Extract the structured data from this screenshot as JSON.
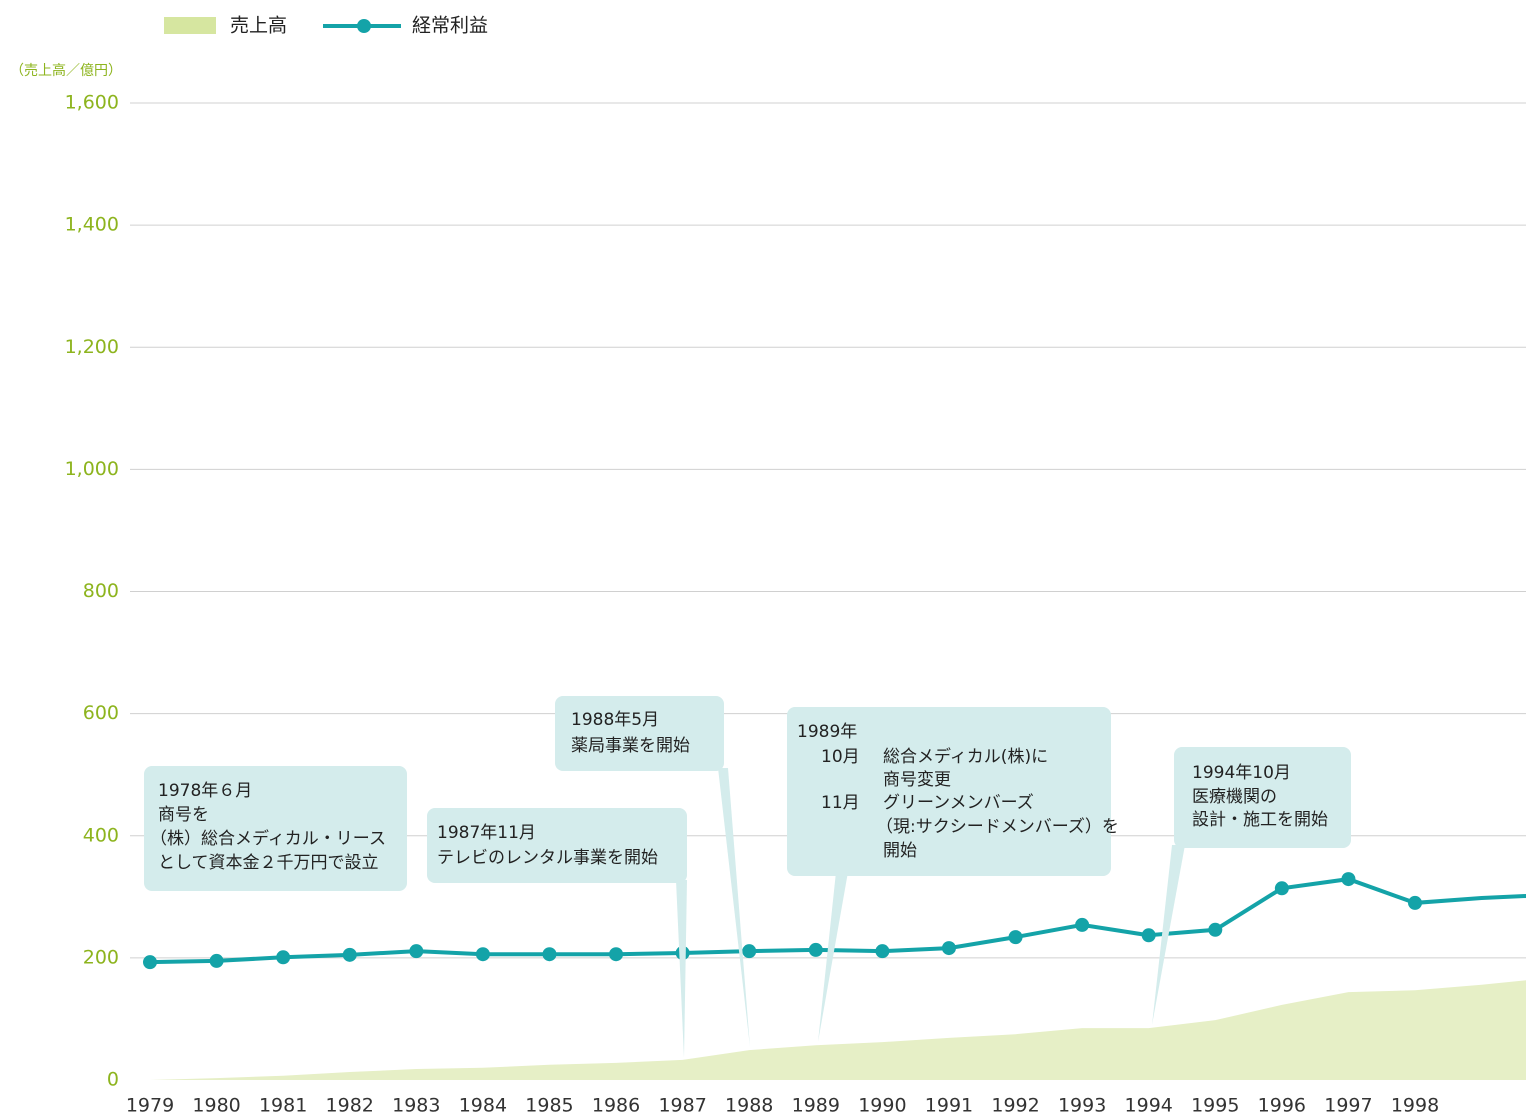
{
  "chart_data": {
    "type": "area-line",
    "y_axis_label": "（売上高／億円）",
    "categories": [
      "1979",
      "1980",
      "1981",
      "1982",
      "1983",
      "1984",
      "1985",
      "1986",
      "1987",
      "1988",
      "1989",
      "1990",
      "1991",
      "1992",
      "1993",
      "1994",
      "1995",
      "1996",
      "1997",
      "1998",
      null,
      null
    ],
    "series": [
      {
        "name": "売上高",
        "type": "area",
        "color": "#e6efc6",
        "legend_color": "#d6e6a0",
        "values": [
          0,
          3,
          7,
          13,
          18,
          20,
          25,
          28,
          33,
          49,
          57,
          62,
          69,
          75,
          85,
          85,
          98,
          123,
          144,
          147,
          156,
          167
        ]
      },
      {
        "name": "経常利益",
        "type": "line",
        "color": "#14a3a8",
        "values": [
          193,
          195,
          201,
          205,
          211,
          206,
          206,
          206,
          208,
          211,
          213,
          211,
          216,
          234,
          254,
          237,
          246,
          314,
          329,
          290,
          298,
          303
        ]
      }
    ],
    "ylim": [
      0,
      1600
    ],
    "yticks": [
      0,
      200,
      400,
      600,
      800,
      {
        "value": 1000,
        "label": "1,000"
      },
      {
        "value": 1200,
        "label": "1,200"
      },
      {
        "value": 1400,
        "label": "1,400"
      },
      {
        "value": 1600,
        "label": "1,600"
      }
    ],
    "grid": true,
    "annotations": [
      {
        "lines": [
          "1978年６月",
          "商号を",
          "（株）総合メディカル・リース",
          "として資本金２千万円で設立"
        ]
      },
      {
        "lines": [
          "1987年11月",
          "テレビのレンタル事業を開始"
        ]
      },
      {
        "lines": [
          "1988年5月",
          "薬局事業を開始"
        ]
      },
      {
        "year": "1989年",
        "items": [
          {
            "month": "10月",
            "lines": [
              "総合メディカル(株)に",
              "商号変更"
            ]
          },
          {
            "month": "11月",
            "lines": [
              "グリーンメンバーズ",
              "（現:サクシードメンバーズ）を",
              "開始"
            ]
          }
        ]
      },
      {
        "lines": [
          "1994年10月",
          "医療機関の",
          "設計・施工を開始"
        ]
      }
    ]
  }
}
